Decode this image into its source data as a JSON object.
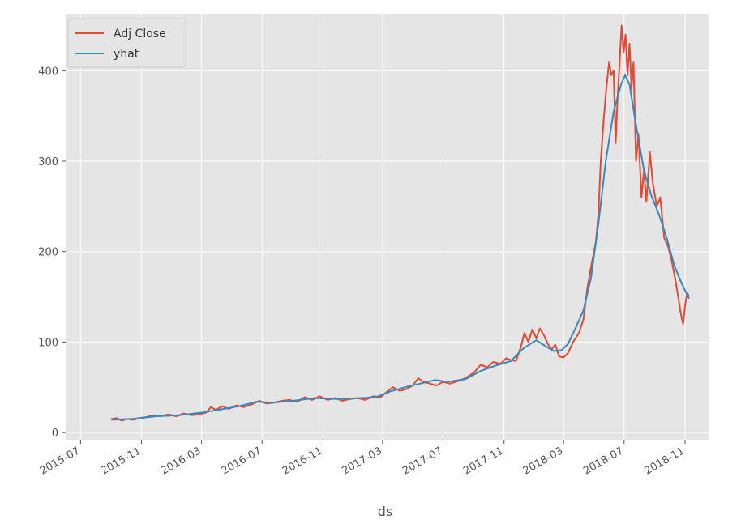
{
  "chart_data": {
    "type": "line",
    "title": "",
    "xlabel": "ds",
    "ylabel": "",
    "xlim": [
      "2015-06-01",
      "2018-12-20"
    ],
    "ylim": [
      -8,
      463
    ],
    "x_ticks": [
      "2015-07",
      "2015-11",
      "2016-03",
      "2016-07",
      "2016-11",
      "2017-03",
      "2017-07",
      "2017-11",
      "2018-03",
      "2018-07",
      "2018-11"
    ],
    "y_ticks": [
      0,
      100,
      200,
      300,
      400
    ],
    "grid": true,
    "legend_position": "top-left",
    "series": [
      {
        "name": "Adj Close",
        "color": "#E24A33",
        "points": [
          [
            "2015-09-01",
            15
          ],
          [
            "2015-09-12",
            16
          ],
          [
            "2015-09-22",
            13
          ],
          [
            "2015-10-02",
            15
          ],
          [
            "2015-10-15",
            14
          ],
          [
            "2015-10-28",
            16
          ],
          [
            "2015-11-10",
            17
          ],
          [
            "2015-11-25",
            19
          ],
          [
            "2015-12-10",
            18
          ],
          [
            "2015-12-25",
            20
          ],
          [
            "2016-01-10",
            18
          ],
          [
            "2016-01-25",
            21
          ],
          [
            "2016-02-10",
            19
          ],
          [
            "2016-02-25",
            20
          ],
          [
            "2016-03-10",
            22
          ],
          [
            "2016-03-20",
            28
          ],
          [
            "2016-03-30",
            25
          ],
          [
            "2016-04-12",
            29
          ],
          [
            "2016-04-25",
            26
          ],
          [
            "2016-05-10",
            30
          ],
          [
            "2016-05-25",
            28
          ],
          [
            "2016-06-10",
            31
          ],
          [
            "2016-06-25",
            35
          ],
          [
            "2016-07-10",
            32
          ],
          [
            "2016-07-25",
            33
          ],
          [
            "2016-08-10",
            35
          ],
          [
            "2016-08-25",
            36
          ],
          [
            "2016-09-10",
            34
          ],
          [
            "2016-09-25",
            39
          ],
          [
            "2016-10-10",
            36
          ],
          [
            "2016-10-25",
            40
          ],
          [
            "2016-11-10",
            36
          ],
          [
            "2016-11-25",
            38
          ],
          [
            "2016-12-10",
            35
          ],
          [
            "2016-12-25",
            37
          ],
          [
            "2017-01-10",
            38
          ],
          [
            "2017-01-25",
            36
          ],
          [
            "2017-02-10",
            40
          ],
          [
            "2017-02-25",
            39
          ],
          [
            "2017-03-10",
            45
          ],
          [
            "2017-03-22",
            50
          ],
          [
            "2017-04-05",
            46
          ],
          [
            "2017-04-18",
            48
          ],
          [
            "2017-05-01",
            52
          ],
          [
            "2017-05-12",
            60
          ],
          [
            "2017-05-22",
            56
          ],
          [
            "2017-06-05",
            54
          ],
          [
            "2017-06-18",
            52
          ],
          [
            "2017-07-01",
            56
          ],
          [
            "2017-07-15",
            54
          ],
          [
            "2017-08-01",
            57
          ],
          [
            "2017-08-15",
            60
          ],
          [
            "2017-09-01",
            66
          ],
          [
            "2017-09-15",
            75
          ],
          [
            "2017-09-28",
            72
          ],
          [
            "2017-10-10",
            78
          ],
          [
            "2017-10-25",
            76
          ],
          [
            "2017-11-05",
            82
          ],
          [
            "2017-11-15",
            80
          ],
          [
            "2017-11-25",
            79
          ],
          [
            "2017-12-05",
            95
          ],
          [
            "2017-12-12",
            110
          ],
          [
            "2017-12-20",
            100
          ],
          [
            "2017-12-28",
            114
          ],
          [
            "2018-01-05",
            104
          ],
          [
            "2018-01-12",
            115
          ],
          [
            "2018-01-20",
            108
          ],
          [
            "2018-01-28",
            98
          ],
          [
            "2018-02-05",
            92
          ],
          [
            "2018-02-12",
            97
          ],
          [
            "2018-02-20",
            84
          ],
          [
            "2018-03-01",
            83
          ],
          [
            "2018-03-10",
            88
          ],
          [
            "2018-03-20",
            100
          ],
          [
            "2018-04-01",
            110
          ],
          [
            "2018-04-10",
            125
          ],
          [
            "2018-04-18",
            160
          ],
          [
            "2018-04-26",
            185
          ],
          [
            "2018-05-05",
            210
          ],
          [
            "2018-05-10",
            240
          ],
          [
            "2018-05-15",
            300
          ],
          [
            "2018-05-20",
            340
          ],
          [
            "2018-05-26",
            380
          ],
          [
            "2018-06-01",
            410
          ],
          [
            "2018-06-05",
            395
          ],
          [
            "2018-06-10",
            400
          ],
          [
            "2018-06-14",
            320
          ],
          [
            "2018-06-18",
            370
          ],
          [
            "2018-06-22",
            410
          ],
          [
            "2018-06-26",
            450
          ],
          [
            "2018-06-30",
            420
          ],
          [
            "2018-07-04",
            440
          ],
          [
            "2018-07-08",
            395
          ],
          [
            "2018-07-12",
            430
          ],
          [
            "2018-07-16",
            380
          ],
          [
            "2018-07-20",
            410
          ],
          [
            "2018-07-25",
            300
          ],
          [
            "2018-07-30",
            330
          ],
          [
            "2018-08-05",
            260
          ],
          [
            "2018-08-10",
            290
          ],
          [
            "2018-08-15",
            255
          ],
          [
            "2018-08-22",
            310
          ],
          [
            "2018-08-28",
            275
          ],
          [
            "2018-09-05",
            250
          ],
          [
            "2018-09-12",
            260
          ],
          [
            "2018-09-20",
            215
          ],
          [
            "2018-09-28",
            205
          ],
          [
            "2018-10-05",
            190
          ],
          [
            "2018-10-12",
            170
          ],
          [
            "2018-10-18",
            150
          ],
          [
            "2018-10-24",
            130
          ],
          [
            "2018-10-28",
            120
          ],
          [
            "2018-11-01",
            140
          ],
          [
            "2018-11-05",
            155
          ],
          [
            "2018-11-09",
            150
          ]
        ]
      },
      {
        "name": "yhat",
        "color": "#348ABD",
        "points": [
          [
            "2015-09-01",
            14
          ],
          [
            "2015-10-15",
            15
          ],
          [
            "2015-12-01",
            18
          ],
          [
            "2016-01-15",
            19
          ],
          [
            "2016-03-01",
            22
          ],
          [
            "2016-04-15",
            26
          ],
          [
            "2016-05-15",
            29
          ],
          [
            "2016-06-20",
            34
          ],
          [
            "2016-07-20",
            33
          ],
          [
            "2016-09-01",
            35
          ],
          [
            "2016-10-15",
            38
          ],
          [
            "2016-12-01",
            37
          ],
          [
            "2017-01-15",
            38
          ],
          [
            "2017-02-15",
            39
          ],
          [
            "2017-03-15",
            45
          ],
          [
            "2017-04-15",
            50
          ],
          [
            "2017-05-15",
            54
          ],
          [
            "2017-06-15",
            58
          ],
          [
            "2017-07-10",
            56
          ],
          [
            "2017-08-15",
            59
          ],
          [
            "2017-09-15",
            68
          ],
          [
            "2017-10-15",
            74
          ],
          [
            "2017-11-15",
            79
          ],
          [
            "2017-12-10",
            93
          ],
          [
            "2018-01-05",
            102
          ],
          [
            "2018-01-25",
            95
          ],
          [
            "2018-02-10",
            90
          ],
          [
            "2018-02-25",
            91
          ],
          [
            "2018-03-10",
            98
          ],
          [
            "2018-03-25",
            115
          ],
          [
            "2018-04-10",
            135
          ],
          [
            "2018-04-25",
            170
          ],
          [
            "2018-05-10",
            230
          ],
          [
            "2018-05-25",
            300
          ],
          [
            "2018-06-10",
            355
          ],
          [
            "2018-06-25",
            385
          ],
          [
            "2018-07-03",
            395
          ],
          [
            "2018-07-12",
            385
          ],
          [
            "2018-07-25",
            340
          ],
          [
            "2018-08-10",
            290
          ],
          [
            "2018-08-25",
            262
          ],
          [
            "2018-09-10",
            240
          ],
          [
            "2018-09-25",
            215
          ],
          [
            "2018-10-10",
            185
          ],
          [
            "2018-10-25",
            165
          ],
          [
            "2018-11-09",
            148
          ]
        ]
      }
    ]
  }
}
